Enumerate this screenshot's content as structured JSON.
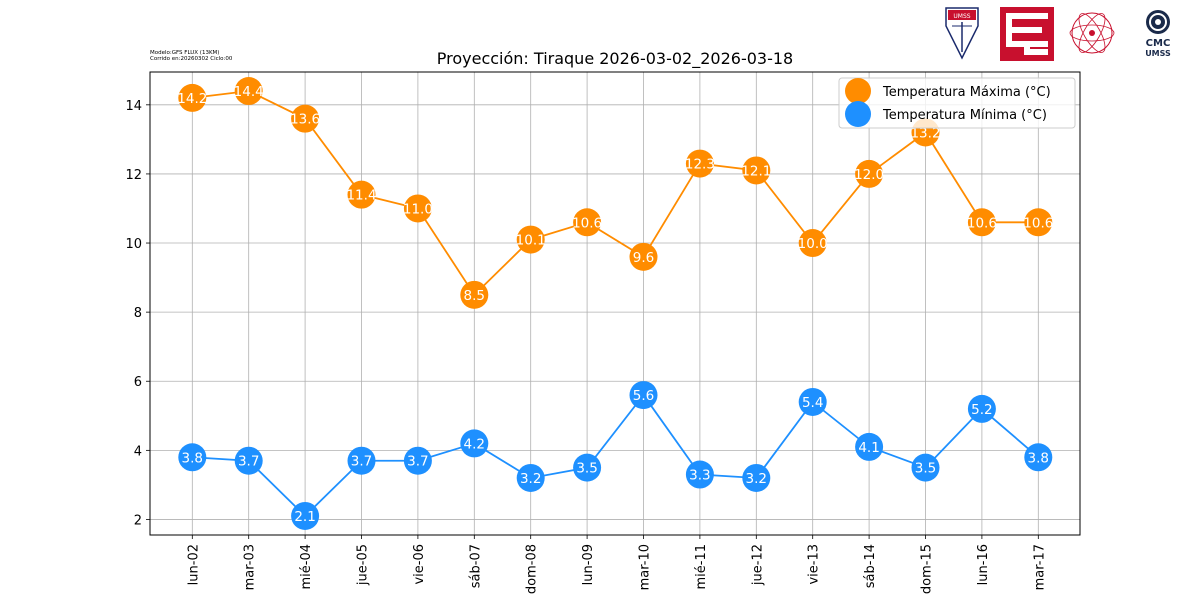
{
  "model_info": {
    "line1": "Modelo:GFS FLUX (13KM)",
    "line2": "Corrido en:20260302 Ciclo:00"
  },
  "logos": {
    "umss_shield_text": "UMSS",
    "cmc_text": "CMC",
    "cmc_subtext": "UMSS"
  },
  "chart_data": {
    "type": "line",
    "title": "Proyección: Tiraque 2026-03-02_2026-03-18",
    "xlabel": "",
    "ylabel": "",
    "categories": [
      "lun-02",
      "mar-03",
      "mié-04",
      "jue-05",
      "vie-06",
      "sáb-07",
      "dom-08",
      "lun-09",
      "mar-10",
      "mié-11",
      "jue-12",
      "vie-13",
      "sáb-14",
      "dom-15",
      "lun-16",
      "mar-17"
    ],
    "ylim": [
      1.55,
      14.95
    ],
    "yticks": [
      2,
      4,
      6,
      8,
      10,
      12,
      14
    ],
    "grid": true,
    "legend_position": "top-right",
    "series": [
      {
        "name": "Temperatura Máxima  (°C)",
        "color": "#ff8c00",
        "values": [
          14.2,
          14.4,
          13.6,
          11.4,
          11.0,
          8.5,
          10.1,
          10.6,
          9.6,
          12.3,
          12.1,
          10.0,
          12.0,
          13.2,
          10.6,
          10.6
        ]
      },
      {
        "name": "Temperatura Mínima  (°C)",
        "color": "#1e90ff",
        "values": [
          3.8,
          3.7,
          2.1,
          3.7,
          3.7,
          4.2,
          3.2,
          3.5,
          5.6,
          3.3,
          3.2,
          5.4,
          4.1,
          3.5,
          5.2,
          3.8
        ]
      }
    ]
  }
}
